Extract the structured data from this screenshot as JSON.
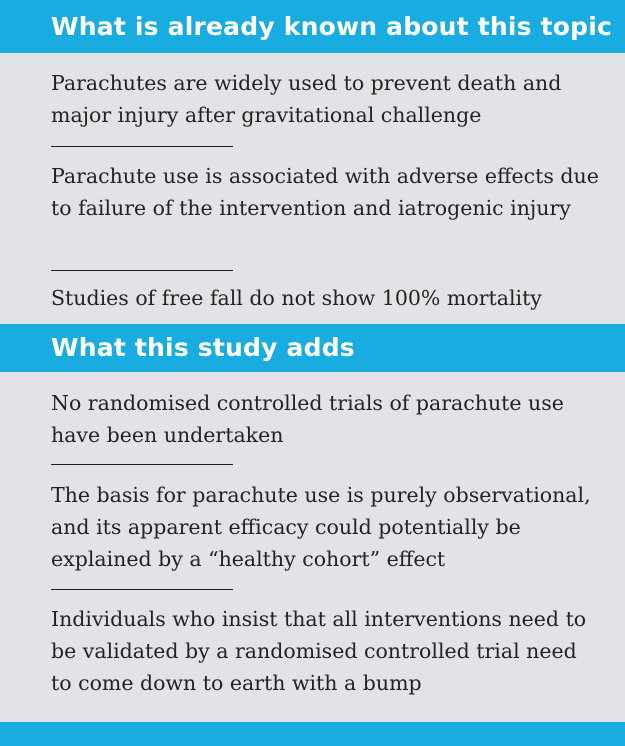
{
  "known": {
    "heading": "What is already known about this topic",
    "items": [
      "Parachutes are widely used to prevent death and major injury after gravitational challenge",
      "Parachute use is associated with adverse effects due to failure of the intervention and iatrogenic injury",
      "Studies of free fall do not show 100% mortality"
    ]
  },
  "adds": {
    "heading": "What this study adds",
    "items": [
      "No randomised controlled trials of parachute use have been undertaken",
      "The basis for parachute use is purely observational, and its apparent efficacy could potentially be explained by a “healthy cohort” effect",
      "Individuals who insist that all interventions need to be validated by a randomised controlled trial need to come down to earth with a bump"
    ]
  },
  "colors": {
    "header_bar": "#19ace0",
    "panel_background": "#e1e3e6",
    "body_text": "#232323"
  }
}
